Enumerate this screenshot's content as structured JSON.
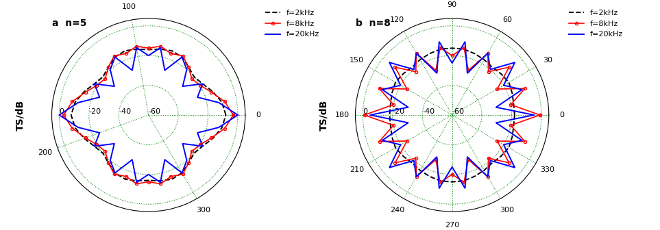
{
  "chart_data": [
    {
      "type": "polar",
      "title": "a  n=5",
      "ylabel": "TS/dB",
      "x": [
        0,
        10,
        20,
        30,
        40,
        50,
        60,
        70,
        80,
        90,
        100,
        110,
        120,
        130,
        140,
        150,
        160,
        170,
        180,
        190,
        200,
        210,
        220,
        230,
        240,
        250,
        260,
        270,
        280,
        290,
        300,
        310,
        320,
        330,
        340,
        350,
        360
      ],
      "xlim": [
        0,
        360
      ],
      "xticks": [
        0,
        100,
        200,
        300
      ],
      "ylim": [
        -60,
        5
      ],
      "yticks": [
        -60,
        -40,
        -20,
        0
      ],
      "grid": true,
      "legend": "upper right",
      "series": [
        {
          "name": "f=2kHz",
          "color": "#000000",
          "line_style": "dashed",
          "values": [
            -8,
            -10,
            -14,
            -18,
            -20,
            -18,
            -15,
            -14,
            -15,
            -16,
            -15,
            -14,
            -15,
            -18,
            -20,
            -18,
            -14,
            -10,
            -8,
            -10,
            -14,
            -18,
            -20,
            -18,
            -15,
            -14,
            -15,
            -16,
            -15,
            -14,
            -15,
            -18,
            -20,
            -18,
            -14,
            -10,
            -8
          ]
        },
        {
          "name": "f=8kHz",
          "color": "#ff0000",
          "line_style": "solid",
          "marker": "o",
          "values": [
            -3,
            -8,
            -15,
            -20,
            -22,
            -18,
            -14,
            -16,
            -13,
            -15,
            -13,
            -16,
            -14,
            -18,
            -22,
            -20,
            -15,
            -8,
            -3,
            -8,
            -15,
            -20,
            -22,
            -18,
            -14,
            -16,
            -13,
            -15,
            -13,
            -16,
            -14,
            -18,
            -22,
            -20,
            -15,
            -8,
            -3
          ]
        },
        {
          "name": "f=20kHz",
          "color": "#0000ff",
          "line_style": "solid",
          "values": [
            0,
            -12,
            -25,
            -18,
            -30,
            -20,
            -15,
            -28,
            -14,
            -20,
            -14,
            -28,
            -15,
            -20,
            -30,
            -18,
            -25,
            -12,
            0,
            -12,
            -25,
            -18,
            -30,
            -20,
            -15,
            -28,
            -14,
            -20,
            -14,
            -28,
            -15,
            -20,
            -30,
            -18,
            -25,
            -12,
            0
          ]
        }
      ]
    },
    {
      "type": "polar",
      "title": "b  n=8",
      "ylabel": "TS/dB",
      "x": [
        0,
        10,
        20,
        30,
        40,
        50,
        60,
        70,
        80,
        90,
        100,
        110,
        120,
        130,
        140,
        150,
        160,
        170,
        180,
        190,
        200,
        210,
        220,
        230,
        240,
        250,
        260,
        270,
        280,
        290,
        300,
        310,
        320,
        330,
        340,
        350,
        360
      ],
      "xlim": [
        0,
        360
      ],
      "xticks": [
        0,
        30,
        60,
        90,
        120,
        150,
        180,
        210,
        240,
        270,
        300,
        330
      ],
      "ylim": [
        -60,
        5
      ],
      "yticks": [
        -60,
        -40,
        -20,
        0
      ],
      "grid": true,
      "legend": "upper right",
      "series": [
        {
          "name": "f=2kHz",
          "color": "#000000",
          "line_style": "dashed",
          "values": [
            -18,
            -18,
            -17,
            -16,
            -17,
            -18,
            -17,
            -16,
            -15,
            -15,
            -15,
            -16,
            -17,
            -18,
            -17,
            -16,
            -17,
            -18,
            -18,
            -18,
            -17,
            -16,
            -17,
            -18,
            -17,
            -16,
            -15,
            -15,
            -15,
            -16,
            -17,
            -18,
            -17,
            -16,
            -17,
            -18,
            -18
          ]
        },
        {
          "name": "f=8kHz",
          "color": "#ff0000",
          "line_style": "solid",
          "marker": "o",
          "values": [
            -1,
            -20,
            -8,
            -25,
            -10,
            -22,
            -12,
            -28,
            -14,
            -20,
            -14,
            -28,
            -12,
            -22,
            -10,
            -25,
            -8,
            -20,
            -1,
            -20,
            -8,
            -25,
            -10,
            -22,
            -12,
            -28,
            -14,
            -20,
            -14,
            -28,
            -12,
            -22,
            -10,
            -25,
            -8,
            -20,
            -1
          ]
        },
        {
          "name": "f=20kHz",
          "color": "#0000ff",
          "line_style": "solid",
          "values": [
            -5,
            -30,
            -10,
            -20,
            -5,
            -20,
            -12,
            -30,
            -10,
            -25,
            -10,
            -30,
            -12,
            -20,
            -5,
            -20,
            -10,
            -30,
            -5,
            -30,
            -10,
            -20,
            -5,
            -20,
            -12,
            -30,
            -10,
            -25,
            -10,
            -30,
            -12,
            -20,
            -5,
            -20,
            -10,
            -30,
            -5
          ]
        }
      ]
    }
  ]
}
